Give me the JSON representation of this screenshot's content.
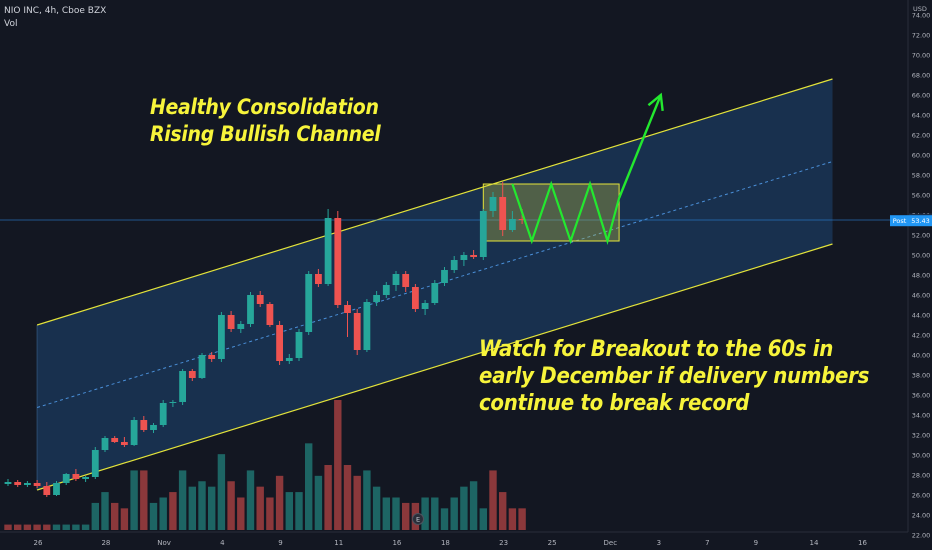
{
  "header": {
    "symbol": "NIO INC, 4h, Cboe BZX",
    "indicator": "Vol"
  },
  "annotations": {
    "top": [
      "Healthy Consolidation",
      "Rising Bullish Channel"
    ],
    "bottom": [
      "Watch for Breakout to the 60s in",
      "early December if delivery numbers",
      "continue to break record"
    ]
  },
  "colors": {
    "background": "#131722",
    "up": "#26a69a",
    "down": "#ef5350",
    "channel_line": "#e3e33a",
    "channel_fill": "#1b3a5e",
    "arrow": "#23e82f",
    "annotation_text": "#f7f43b",
    "price_line": "#2a7fd4",
    "post_label": "#2196f3"
  },
  "chart_data": {
    "type": "candlestick",
    "currency": "USD",
    "ylim": [
      20.5,
      75.5
    ],
    "y_ticks": [
      "22.00",
      "24.00",
      "26.00",
      "28.00",
      "30.00",
      "32.00",
      "34.00",
      "36.00",
      "38.00",
      "40.00",
      "42.00",
      "44.00",
      "46.00",
      "48.00",
      "50.00",
      "52.00",
      "54.00",
      "56.00",
      "58.00",
      "60.00",
      "62.00",
      "64.00",
      "66.00",
      "68.00",
      "70.00",
      "72.00",
      "74.00"
    ],
    "x_ticks": [
      {
        "label": "26",
        "bar": 0
      },
      {
        "label": "28",
        "bar": 7
      },
      {
        "label": "Nov",
        "bar": 13
      },
      {
        "label": "4",
        "bar": 19
      },
      {
        "label": "9",
        "bar": 25
      },
      {
        "label": "11",
        "bar": 31
      },
      {
        "label": "16",
        "bar": 37
      },
      {
        "label": "18",
        "bar": 42
      },
      {
        "label": "23",
        "bar": 48
      },
      {
        "label": "25",
        "bar": 53
      },
      {
        "label": "Dec",
        "bar": 59
      },
      {
        "label": "3",
        "bar": 64
      },
      {
        "label": "7",
        "bar": 69
      },
      {
        "label": "9",
        "bar": 74
      },
      {
        "label": "14",
        "bar": 80
      },
      {
        "label": "16",
        "bar": 85
      }
    ],
    "last_price": "53.55",
    "post_price": "53.43",
    "post_label": "Post",
    "price_line": 53.5,
    "ohlc": [
      [
        27.1,
        27.6,
        26.9,
        27.3
      ],
      [
        27.3,
        27.5,
        26.8,
        27.0
      ],
      [
        27.0,
        27.4,
        26.8,
        27.2
      ],
      [
        27.2,
        27.5,
        26.7,
        26.9
      ],
      [
        26.9,
        27.3,
        25.8,
        26.0
      ],
      [
        26.0,
        27.4,
        25.9,
        27.2
      ],
      [
        27.2,
        28.2,
        27.0,
        28.1
      ],
      [
        28.1,
        28.6,
        27.4,
        27.6
      ],
      [
        27.6,
        27.9,
        27.3,
        27.8
      ],
      [
        27.8,
        30.8,
        27.6,
        30.5
      ],
      [
        30.5,
        31.9,
        30.3,
        31.7
      ],
      [
        31.7,
        31.9,
        31.2,
        31.3
      ],
      [
        31.3,
        31.8,
        30.8,
        31.0
      ],
      [
        31.0,
        33.8,
        30.9,
        33.5
      ],
      [
        33.5,
        33.9,
        32.3,
        32.5
      ],
      [
        32.5,
        33.2,
        32.2,
        33.0
      ],
      [
        33.0,
        35.5,
        32.8,
        35.2
      ],
      [
        35.2,
        35.5,
        34.8,
        35.3
      ],
      [
        35.3,
        38.6,
        35.0,
        38.4
      ],
      [
        38.4,
        38.6,
        37.4,
        37.7
      ],
      [
        37.7,
        40.2,
        37.6,
        40.0
      ],
      [
        40.0,
        40.3,
        39.3,
        39.6
      ],
      [
        39.6,
        44.3,
        39.3,
        44.0
      ],
      [
        44.0,
        44.4,
        42.3,
        42.6
      ],
      [
        42.6,
        43.4,
        42.2,
        43.1
      ],
      [
        43.1,
        46.3,
        42.8,
        46.0
      ],
      [
        46.0,
        46.4,
        44.8,
        45.1
      ],
      [
        45.1,
        45.3,
        42.8,
        43.0
      ],
      [
        43.0,
        43.4,
        39.0,
        39.4
      ],
      [
        39.4,
        40.1,
        39.1,
        39.7
      ],
      [
        39.7,
        42.6,
        39.4,
        42.3
      ],
      [
        42.3,
        48.4,
        42.0,
        48.1
      ],
      [
        48.1,
        48.6,
        46.8,
        47.1
      ],
      [
        47.1,
        54.6,
        46.9,
        53.7
      ],
      [
        53.7,
        54.4,
        44.7,
        45.0
      ],
      [
        45.0,
        45.4,
        41.8,
        44.2
      ],
      [
        44.2,
        44.6,
        40.0,
        40.5
      ],
      [
        40.5,
        45.6,
        40.3,
        45.3
      ],
      [
        45.3,
        46.4,
        44.9,
        46.0
      ],
      [
        46.0,
        47.3,
        45.7,
        47.0
      ],
      [
        47.0,
        48.4,
        46.4,
        48.1
      ],
      [
        48.1,
        48.4,
        46.3,
        46.8
      ],
      [
        46.8,
        47.1,
        44.3,
        44.6
      ],
      [
        44.6,
        45.5,
        44.0,
        45.2
      ],
      [
        45.2,
        47.5,
        45.0,
        47.2
      ],
      [
        47.2,
        48.8,
        46.9,
        48.5
      ],
      [
        48.5,
        49.9,
        48.2,
        49.5
      ],
      [
        49.5,
        50.3,
        48.9,
        50.0
      ],
      [
        50.0,
        50.5,
        49.6,
        49.8
      ],
      [
        49.8,
        54.6,
        49.5,
        54.4
      ],
      [
        54.4,
        56.3,
        53.8,
        55.8
      ],
      [
        55.8,
        57.3,
        51.9,
        52.5
      ],
      [
        52.5,
        54.4,
        52.3,
        53.6
      ],
      [
        53.6,
        54.6,
        53.1,
        53.5
      ]
    ],
    "volume": [
      [
        1,
        0
      ],
      [
        1,
        0
      ],
      [
        1,
        0
      ],
      [
        1,
        0
      ],
      [
        1,
        0
      ],
      [
        1,
        1
      ],
      [
        1,
        1
      ],
      [
        1,
        1
      ],
      [
        1,
        1
      ],
      [
        5,
        1
      ],
      [
        7,
        1
      ],
      [
        5,
        0
      ],
      [
        4,
        0
      ],
      [
        11,
        1
      ],
      [
        11,
        0
      ],
      [
        5,
        1
      ],
      [
        6,
        1
      ],
      [
        7,
        0
      ],
      [
        11,
        1
      ],
      [
        8,
        1
      ],
      [
        9,
        1
      ],
      [
        8,
        1
      ],
      [
        14,
        1
      ],
      [
        9,
        0
      ],
      [
        6,
        0
      ],
      [
        11,
        1
      ],
      [
        8,
        0
      ],
      [
        6,
        0
      ],
      [
        10,
        0
      ],
      [
        7,
        1
      ],
      [
        7,
        1
      ],
      [
        16,
        1
      ],
      [
        10,
        1
      ],
      [
        12,
        0
      ],
      [
        24,
        0
      ],
      [
        12,
        0
      ],
      [
        10,
        0
      ],
      [
        11,
        1
      ],
      [
        8,
        1
      ],
      [
        6,
        1
      ],
      [
        6,
        1
      ],
      [
        5,
        0
      ],
      [
        5,
        0
      ],
      [
        6,
        1
      ],
      [
        6,
        1
      ],
      [
        4,
        1
      ],
      [
        6,
        1
      ],
      [
        8,
        1
      ],
      [
        9,
        1
      ],
      [
        4,
        1
      ],
      [
        11,
        0
      ],
      [
        7,
        0
      ],
      [
        4,
        0
      ],
      [
        4,
        0
      ]
    ],
    "volume_max": 24,
    "channel": {
      "upper": {
        "bar0": 42.1,
        "slope": 0.3
      },
      "lower": {
        "bar0": 25.6,
        "slope": 0.3
      },
      "start_bar": 3,
      "end_bar": 85
    },
    "consolidation_box": {
      "start_bar": 49,
      "end_bar": 63,
      "top": 57.1,
      "bottom": 51.4
    },
    "zigzag": [
      [
        52.0,
        57.1
      ],
      [
        54.0,
        51.4
      ],
      [
        56.0,
        57.1
      ],
      [
        58.0,
        51.4
      ],
      [
        60.0,
        57.1
      ],
      [
        61.8,
        51.4
      ],
      [
        63.0,
        55.7
      ]
    ],
    "arrow": [
      [
        63.0,
        55.7
      ],
      [
        67.3,
        66.0
      ]
    ]
  }
}
